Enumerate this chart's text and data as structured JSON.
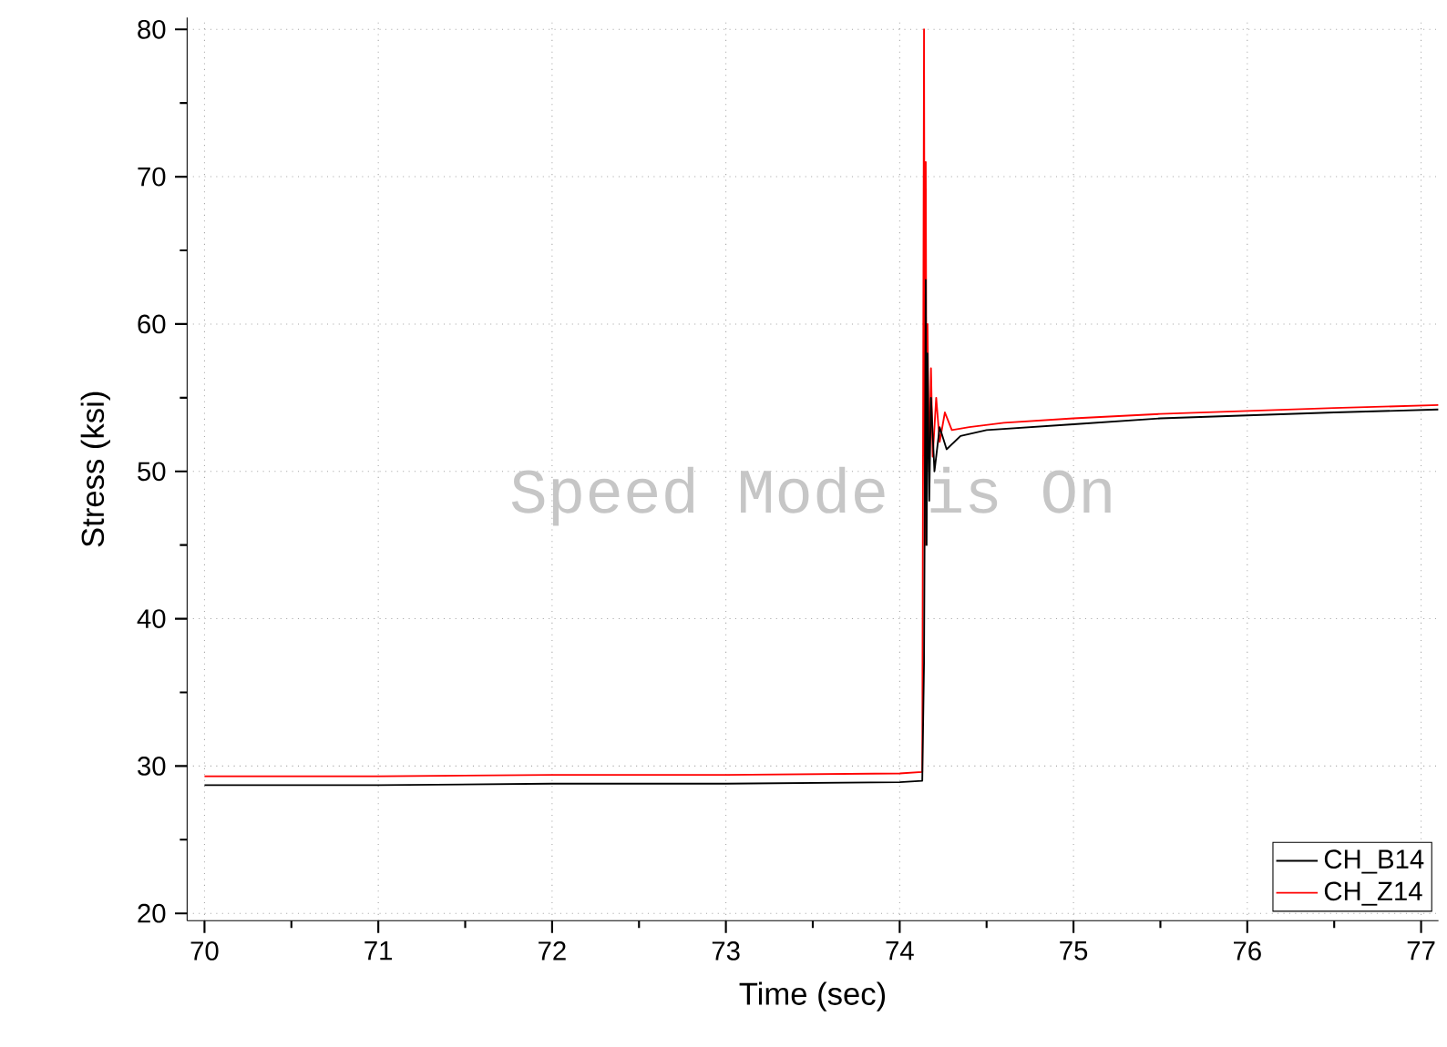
{
  "chart_data": {
    "type": "line",
    "xlabel": "Time (sec)",
    "ylabel": "Stress (ksi)",
    "xlim": [
      69.9,
      77.1
    ],
    "xticks": [
      70,
      71,
      72,
      73,
      74,
      75,
      76,
      77
    ],
    "ylim": [
      19.5,
      80.8
    ],
    "yticks": [
      20,
      30,
      40,
      50,
      60,
      70,
      80
    ],
    "grid": true,
    "legend": "bottom right",
    "marker": "none",
    "line_style": "solid",
    "annotations": [
      "Speed Mode is On"
    ],
    "series": [
      {
        "name": "CH_B14",
        "color": "#000000",
        "x": [
          70,
          71,
          72,
          73,
          74,
          74.13,
          74.14,
          74.15,
          74.155,
          74.16,
          74.17,
          74.18,
          74.2,
          74.23,
          74.27,
          74.35,
          74.5,
          75,
          75.5,
          76,
          76.5,
          77.1
        ],
        "values": [
          28.7,
          28.7,
          28.8,
          28.8,
          28.9,
          29,
          37,
          63,
          45,
          58,
          48,
          55,
          50,
          53,
          51.5,
          52.4,
          52.8,
          53.2,
          53.6,
          53.8,
          54.0,
          54.2
        ]
      },
      {
        "name": "CH_Z14",
        "color": "#ff0000",
        "x": [
          70,
          71,
          72,
          73,
          74,
          74.13,
          74.14,
          74.145,
          74.15,
          74.155,
          74.16,
          74.17,
          74.18,
          74.19,
          74.21,
          74.23,
          74.26,
          74.3,
          74.4,
          74.6,
          75,
          75.5,
          76,
          76.5,
          77.1
        ],
        "values": [
          29.3,
          29.3,
          29.4,
          29.4,
          29.5,
          29.6,
          80,
          45,
          71,
          48,
          60,
          50,
          57,
          51,
          55,
          52,
          54,
          52.8,
          53,
          53.3,
          53.6,
          53.9,
          54.1,
          54.3,
          54.5
        ]
      }
    ]
  }
}
